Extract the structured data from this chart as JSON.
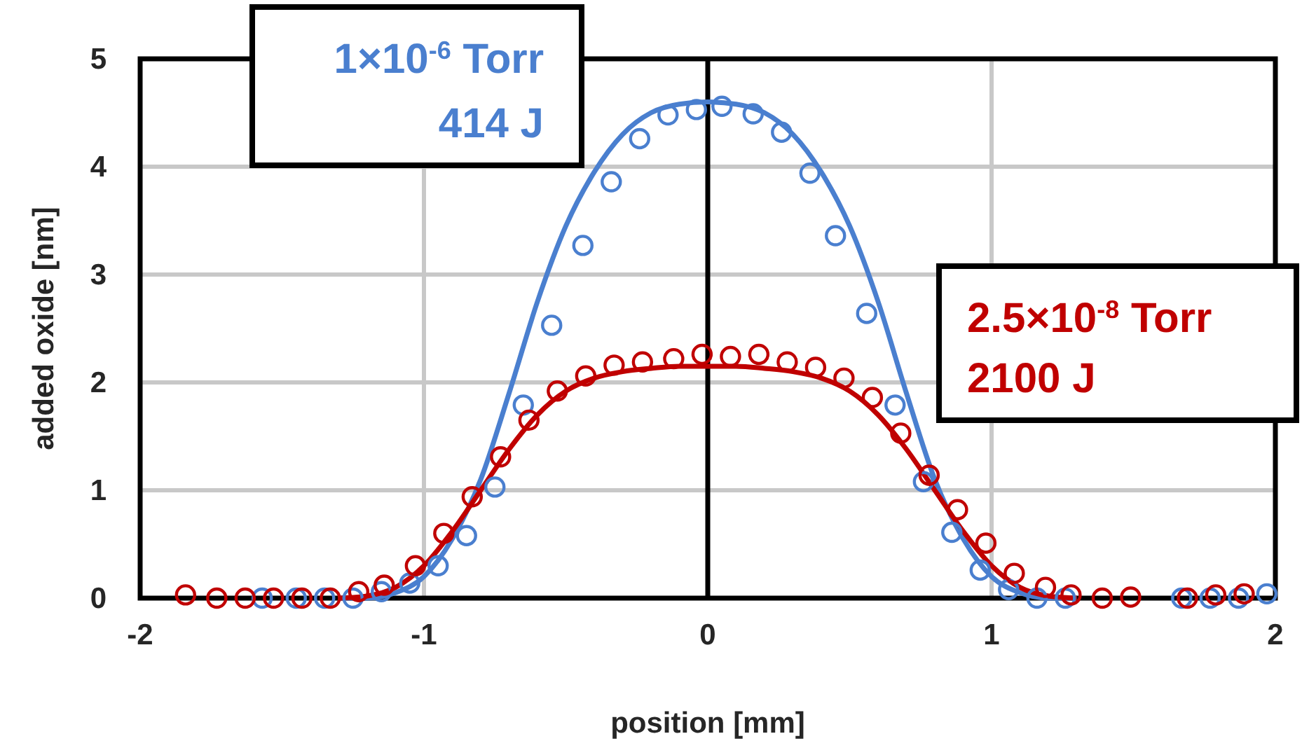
{
  "chart_data": {
    "type": "scatter",
    "xlabel": "position [mm]",
    "ylabel": "added oxide [nm]",
    "xlim": [
      -2,
      2
    ],
    "xticks": [
      -2,
      -1,
      0,
      1,
      2
    ],
    "ylim": [
      0,
      5
    ],
    "yticks": [
      0,
      1,
      2,
      3,
      4,
      5
    ],
    "grid": true,
    "marker": "circle",
    "ref_lines": [
      {
        "axis": "x",
        "value": 0,
        "color": "#000000"
      }
    ],
    "annotations": [
      "1×10$^{-6}$ Torr\n414 J",
      "2.5×10$^{-8}$ Torr\n2100 J"
    ],
    "series": [
      {
        "type": "line",
        "color": "#4a7fcf",
        "marker": "none",
        "x": [
          -1.3,
          -1.2,
          -1.1,
          -1.0,
          -0.9,
          -0.8,
          -0.7,
          -0.6,
          -0.5,
          -0.4,
          -0.3,
          -0.2,
          -0.1,
          0,
          0.1,
          0.2,
          0.3,
          0.4,
          0.5,
          0.6,
          0.7,
          0.8,
          0.9,
          1.0,
          1.1,
          1.2,
          1.3
        ],
        "values": [
          0,
          0,
          0.05,
          0.2,
          0.55,
          1.1,
          1.9,
          2.75,
          3.45,
          3.95,
          4.3,
          4.5,
          4.58,
          4.6,
          4.58,
          4.5,
          4.3,
          3.95,
          3.45,
          2.75,
          1.9,
          1.1,
          0.55,
          0.2,
          0.05,
          0,
          0
        ]
      },
      {
        "type": "line",
        "color": "#c00000",
        "marker": "none",
        "x": [
          -1.3,
          -1.2,
          -1.1,
          -1.0,
          -0.9,
          -0.8,
          -0.7,
          -0.6,
          -0.5,
          -0.4,
          -0.3,
          -0.2,
          -0.1,
          0,
          0.1,
          0.2,
          0.3,
          0.4,
          0.5,
          0.6,
          0.7,
          0.8,
          0.9,
          1.0,
          1.1,
          1.2,
          1.3
        ],
        "values": [
          0,
          0.02,
          0.1,
          0.3,
          0.62,
          1.0,
          1.38,
          1.7,
          1.92,
          2.04,
          2.1,
          2.13,
          2.15,
          2.15,
          2.15,
          2.13,
          2.1,
          2.04,
          1.92,
          1.7,
          1.38,
          1.0,
          0.62,
          0.3,
          0.1,
          0.02,
          0
        ]
      },
      {
        "color": "#4a7fcf",
        "x": [
          -1.57,
          -1.45,
          -1.35,
          -1.25,
          -1.15,
          -1.05,
          -0.95,
          -0.85,
          -0.75,
          -0.65,
          -0.55,
          -0.44,
          -0.34,
          -0.24,
          -0.14,
          -0.04,
          0.05,
          0.16,
          0.26,
          0.36,
          0.45,
          0.56,
          0.66,
          0.76,
          0.86,
          0.96,
          1.06,
          1.16,
          1.26,
          1.67,
          1.77,
          1.87,
          1.97
        ],
        "values": [
          0,
          0,
          0,
          0,
          0.06,
          0.14,
          0.3,
          0.58,
          1.03,
          1.79,
          2.53,
          3.27,
          3.86,
          4.26,
          4.48,
          4.53,
          4.56,
          4.49,
          4.32,
          3.94,
          3.36,
          2.64,
          1.79,
          1.08,
          0.61,
          0.26,
          0.08,
          0,
          0,
          0,
          0,
          0,
          0.04
        ]
      },
      {
        "color": "#c00000",
        "x": [
          -1.84,
          -1.73,
          -1.63,
          -1.53,
          -1.43,
          -1.33,
          -1.23,
          -1.14,
          -1.03,
          -0.93,
          -0.83,
          -0.73,
          -0.63,
          -0.53,
          -0.43,
          -0.33,
          -0.23,
          -0.12,
          -0.02,
          0.08,
          0.18,
          0.28,
          0.38,
          0.48,
          0.58,
          0.68,
          0.78,
          0.88,
          0.98,
          1.08,
          1.19,
          1.28,
          1.39,
          1.49,
          1.69,
          1.79,
          1.89
        ],
        "values": [
          0.03,
          0,
          0,
          0,
          0,
          0,
          0.06,
          0.12,
          0.3,
          0.6,
          0.94,
          1.31,
          1.65,
          1.92,
          2.06,
          2.16,
          2.19,
          2.22,
          2.26,
          2.24,
          2.26,
          2.19,
          2.14,
          2.04,
          1.86,
          1.53,
          1.14,
          0.82,
          0.51,
          0.23,
          0.1,
          0.03,
          0,
          0.01,
          0,
          0.03,
          0.04
        ]
      }
    ]
  }
}
